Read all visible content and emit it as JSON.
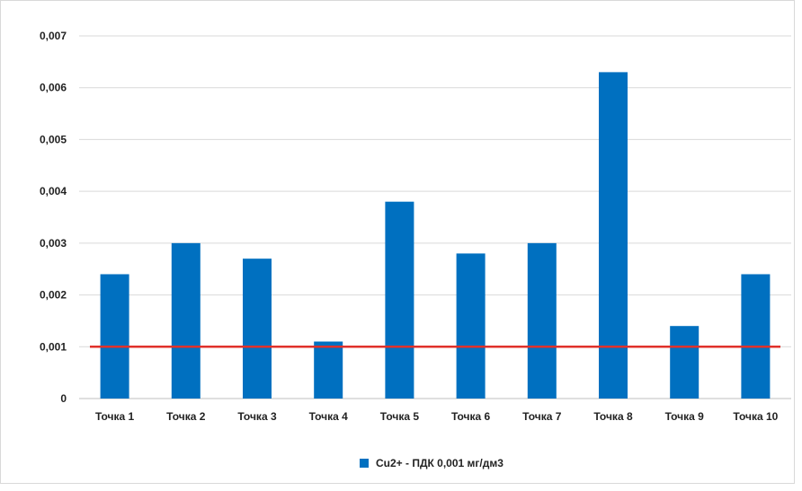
{
  "chart_data": {
    "type": "bar",
    "categories": [
      "Точка 1",
      "Точка 2",
      "Точка 3",
      "Точка 4",
      "Точка 5",
      "Точка 6",
      "Точка 7",
      "Точка 8",
      "Точка 9",
      "Точка 10"
    ],
    "series": [
      {
        "name": "Cu2+ - ПДК 0,001 мг/дм3",
        "values": [
          0.0024,
          0.003,
          0.0027,
          0.0011,
          0.0038,
          0.0028,
          0.003,
          0.0063,
          0.0014,
          0.0024
        ],
        "color": "#0070c0"
      }
    ],
    "reference_line": {
      "value": 0.001,
      "color": "#e0312b"
    },
    "yticks": [
      "0",
      "0,001",
      "0,002",
      "0,003",
      "0,004",
      "0,005",
      "0,006",
      "0,007"
    ],
    "ylim": [
      0,
      0.007
    ],
    "grid": true,
    "legend_position": "bottom",
    "title": "",
    "xlabel": "",
    "ylabel": ""
  }
}
